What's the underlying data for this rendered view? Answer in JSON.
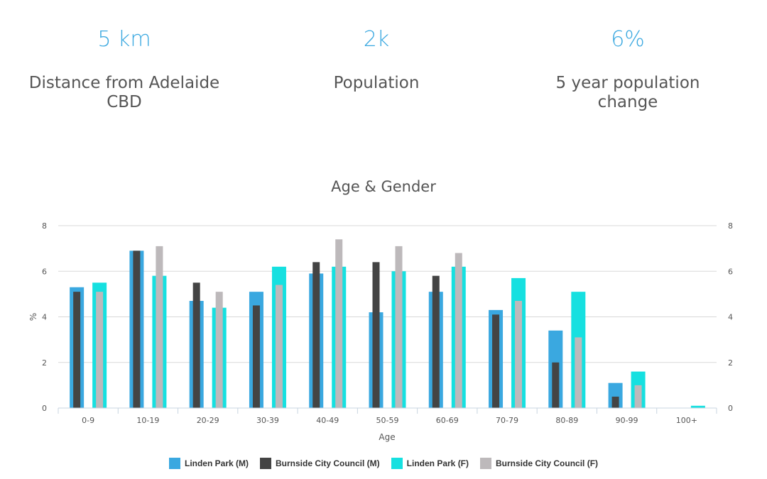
{
  "stats": [
    {
      "value": "5 km",
      "label": "Distance from Adelaide CBD"
    },
    {
      "value": "2k",
      "label": "Population"
    },
    {
      "value": "6%",
      "label": "5 year population change"
    }
  ],
  "chart_data": {
    "type": "bar",
    "title": "Age & Gender",
    "xlabel": "Age",
    "ylabel": "%",
    "ylim": [
      0,
      8
    ],
    "yticks": [
      0,
      2,
      4,
      6,
      8
    ],
    "secondary_y_axis": true,
    "grid": true,
    "legend_position": "bottom",
    "categories": [
      "0-9",
      "10-19",
      "20-29",
      "30-39",
      "40-49",
      "50-59",
      "60-69",
      "70-79",
      "80-89",
      "90-99",
      "100+"
    ],
    "series": [
      {
        "name": "Linden Park (M)",
        "color": "#3aa8e0",
        "values": [
          5.3,
          6.9,
          4.7,
          5.1,
          5.9,
          4.2,
          5.1,
          4.3,
          3.4,
          1.1,
          0
        ]
      },
      {
        "name": "Burnside City Council (M)",
        "color": "#444444",
        "values": [
          5.1,
          6.9,
          5.5,
          4.5,
          6.4,
          6.4,
          5.8,
          4.1,
          2.0,
          0.5,
          0
        ]
      },
      {
        "name": "Linden Park (F)",
        "color": "#16e0e0",
        "values": [
          5.5,
          5.8,
          4.4,
          6.2,
          6.2,
          6.0,
          6.2,
          5.7,
          5.1,
          1.6,
          0.1
        ]
      },
      {
        "name": "Burnside City Council (F)",
        "color": "#bdb9bb",
        "values": [
          5.1,
          7.1,
          5.1,
          5.4,
          7.4,
          7.1,
          6.8,
          4.7,
          3.1,
          1.0,
          0
        ]
      }
    ]
  }
}
